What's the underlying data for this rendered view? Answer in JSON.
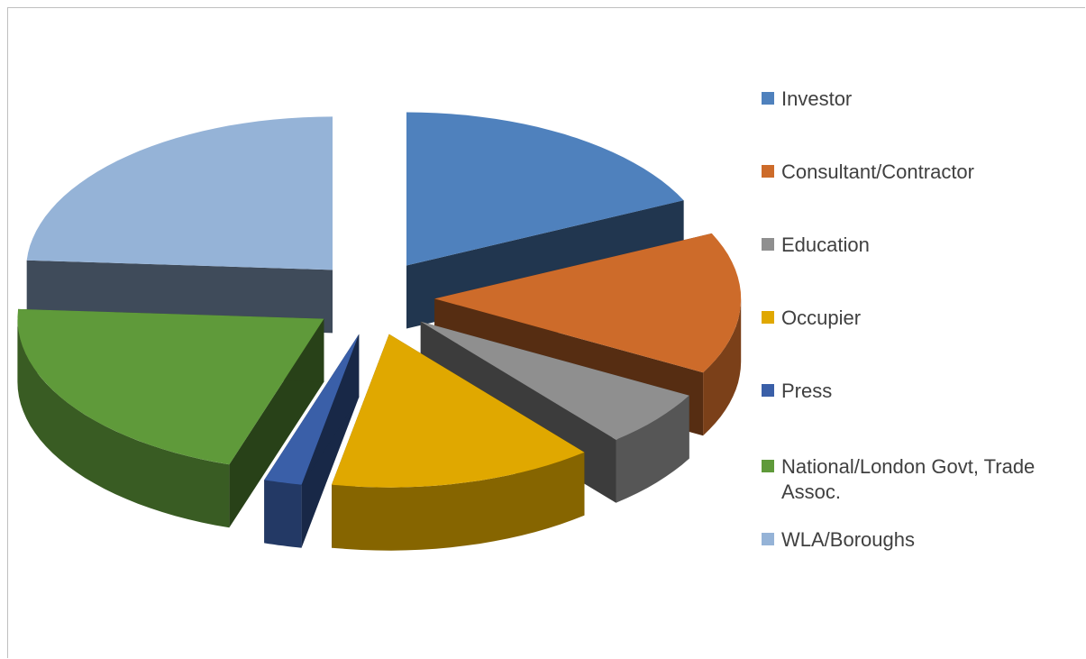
{
  "chart_data": {
    "type": "pie",
    "style": "3d-exploded",
    "categories": [
      "Investor",
      "Consultant/Contractor",
      "Education",
      "Occupier",
      "Press",
      "National/London Govt, Trade Assoc.",
      "WLA/Boroughs"
    ],
    "values": [
      18,
      15,
      6,
      14,
      2,
      21,
      24
    ],
    "colors": [
      "#4f81bd",
      "#cd6b2a",
      "#8f8f8f",
      "#e0a800",
      "#3a5fa8",
      "#5f9a3a",
      "#95b3d7"
    ],
    "legend_position": "right",
    "title": ""
  }
}
